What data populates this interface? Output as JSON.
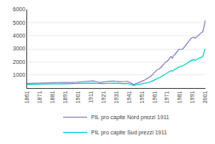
{
  "chart_data": {
    "type": "line",
    "x": [
      1861,
      1862,
      1863,
      1864,
      1865,
      1866,
      1867,
      1868,
      1869,
      1870,
      1871,
      1872,
      1873,
      1874,
      1875,
      1876,
      1877,
      1878,
      1879,
      1880,
      1881,
      1882,
      1883,
      1884,
      1885,
      1886,
      1887,
      1888,
      1889,
      1890,
      1891,
      1892,
      1893,
      1894,
      1895,
      1896,
      1897,
      1898,
      1899,
      1900,
      1901,
      1902,
      1903,
      1904,
      1905,
      1906,
      1907,
      1908,
      1909,
      1910,
      1911,
      1912,
      1913,
      1914,
      1915,
      1916,
      1917,
      1918,
      1919,
      1920,
      1921,
      1922,
      1923,
      1924,
      1925,
      1926,
      1927,
      1928,
      1929,
      1930,
      1931,
      1932,
      1933,
      1934,
      1935,
      1936,
      1937,
      1938,
      1939,
      1940,
      1941,
      1942,
      1943,
      1944,
      1945,
      1946,
      1947,
      1948,
      1949,
      1950,
      1951,
      1952,
      1953,
      1954,
      1955,
      1956,
      1957,
      1958,
      1959,
      1960,
      1961,
      1962,
      1963,
      1964,
      1965,
      1966,
      1967,
      1968,
      1969,
      1970,
      1971,
      1972,
      1973,
      1974,
      1975,
      1976,
      1977,
      1978,
      1979,
      1980,
      1981,
      1982,
      1983,
      1984,
      1985,
      1986,
      1987,
      1988,
      1989,
      1990,
      1991,
      1992,
      1993,
      1994,
      1995,
      1996,
      1997,
      1998,
      1999,
      2000,
      2001
    ],
    "series": [
      {
        "name": "PIL pro capite Nord prezzi 1911",
        "color": "#8080c0",
        "values": [
          350,
          355,
          360,
          362,
          365,
          355,
          348,
          352,
          358,
          362,
          368,
          375,
          382,
          388,
          385,
          388,
          392,
          396,
          390,
          398,
          405,
          412,
          418,
          425,
          422,
          428,
          432,
          435,
          428,
          420,
          415,
          408,
          405,
          402,
          408,
          415,
          422,
          430,
          438,
          445,
          452,
          462,
          472,
          480,
          490,
          502,
          515,
          498,
          505,
          512,
          522,
          532,
          542,
          518,
          488,
          472,
          448,
          425,
          435,
          445,
          432,
          458,
          482,
          502,
          518,
          528,
          512,
          522,
          535,
          512,
          495,
          482,
          475,
          488,
          480,
          475,
          492,
          505,
          518,
          488,
          448,
          405,
          345,
          275,
          248,
          318,
          368,
          405,
          432,
          468,
          512,
          548,
          598,
          648,
          718,
          768,
          838,
          888,
          975,
          1085,
          1195,
          1308,
          1395,
          1435,
          1478,
          1578,
          1688,
          1808,
          1918,
          2008,
          2058,
          2138,
          2318,
          2408,
          2278,
          2478,
          2558,
          2678,
          2818,
          2948,
          2968,
          2958,
          2978,
          3078,
          3198,
          3308,
          3428,
          3618,
          3738,
          3828,
          3868,
          3888,
          3808,
          3898,
          4038,
          4078,
          4158,
          4248,
          4308,
          4778,
          5200
        ]
      },
      {
        "name": "PIL pro capite Sud prezzi 1911",
        "color": "#00cccc",
        "values": [
          285,
          288,
          290,
          292,
          295,
          290,
          285,
          287,
          290,
          292,
          295,
          300,
          305,
          308,
          305,
          308,
          312,
          315,
          310,
          316,
          320,
          324,
          328,
          332,
          329,
          332,
          335,
          337,
          332,
          325,
          320,
          315,
          312,
          309,
          313,
          318,
          325,
          332,
          338,
          342,
          346,
          350,
          355,
          360,
          364,
          368,
          372,
          362,
          366,
          370,
          375,
          380,
          385,
          372,
          355,
          346,
          335,
          324,
          330,
          336,
          328,
          338,
          348,
          358,
          365,
          370,
          360,
          364,
          370,
          355,
          344,
          336,
          330,
          338,
          334,
          330,
          340,
          348,
          354,
          335,
          308,
          280,
          245,
          205,
          185,
          228,
          255,
          272,
          285,
          298,
          315,
          328,
          348,
          368,
          395,
          415,
          445,
          468,
          505,
          558,
          615,
          678,
          732,
          758,
          792,
          848,
          915,
          988,
          1055,
          1108,
          1145,
          1188,
          1278,
          1328,
          1285,
          1368,
          1418,
          1468,
          1528,
          1618,
          1648,
          1658,
          1678,
          1728,
          1788,
          1838,
          1908,
          1998,
          2058,
          2118,
          2148,
          2168,
          2128,
          2178,
          2248,
          2278,
          2318,
          2368,
          2408,
          2778,
          3000
        ]
      }
    ],
    "xlim": [
      1861,
      2001
    ],
    "xticks": [
      1861,
      1871,
      1881,
      1891,
      1901,
      1911,
      1921,
      1931,
      1941,
      1951,
      1961,
      1971,
      1981,
      1991,
      2001
    ],
    "ylim": [
      0,
      6000
    ],
    "yticks": [
      {
        "value": 0,
        "label": ""
      },
      1000,
      2000,
      3000,
      4000,
      5000,
      6000
    ],
    "grid": "y",
    "legend": "bottom"
  }
}
